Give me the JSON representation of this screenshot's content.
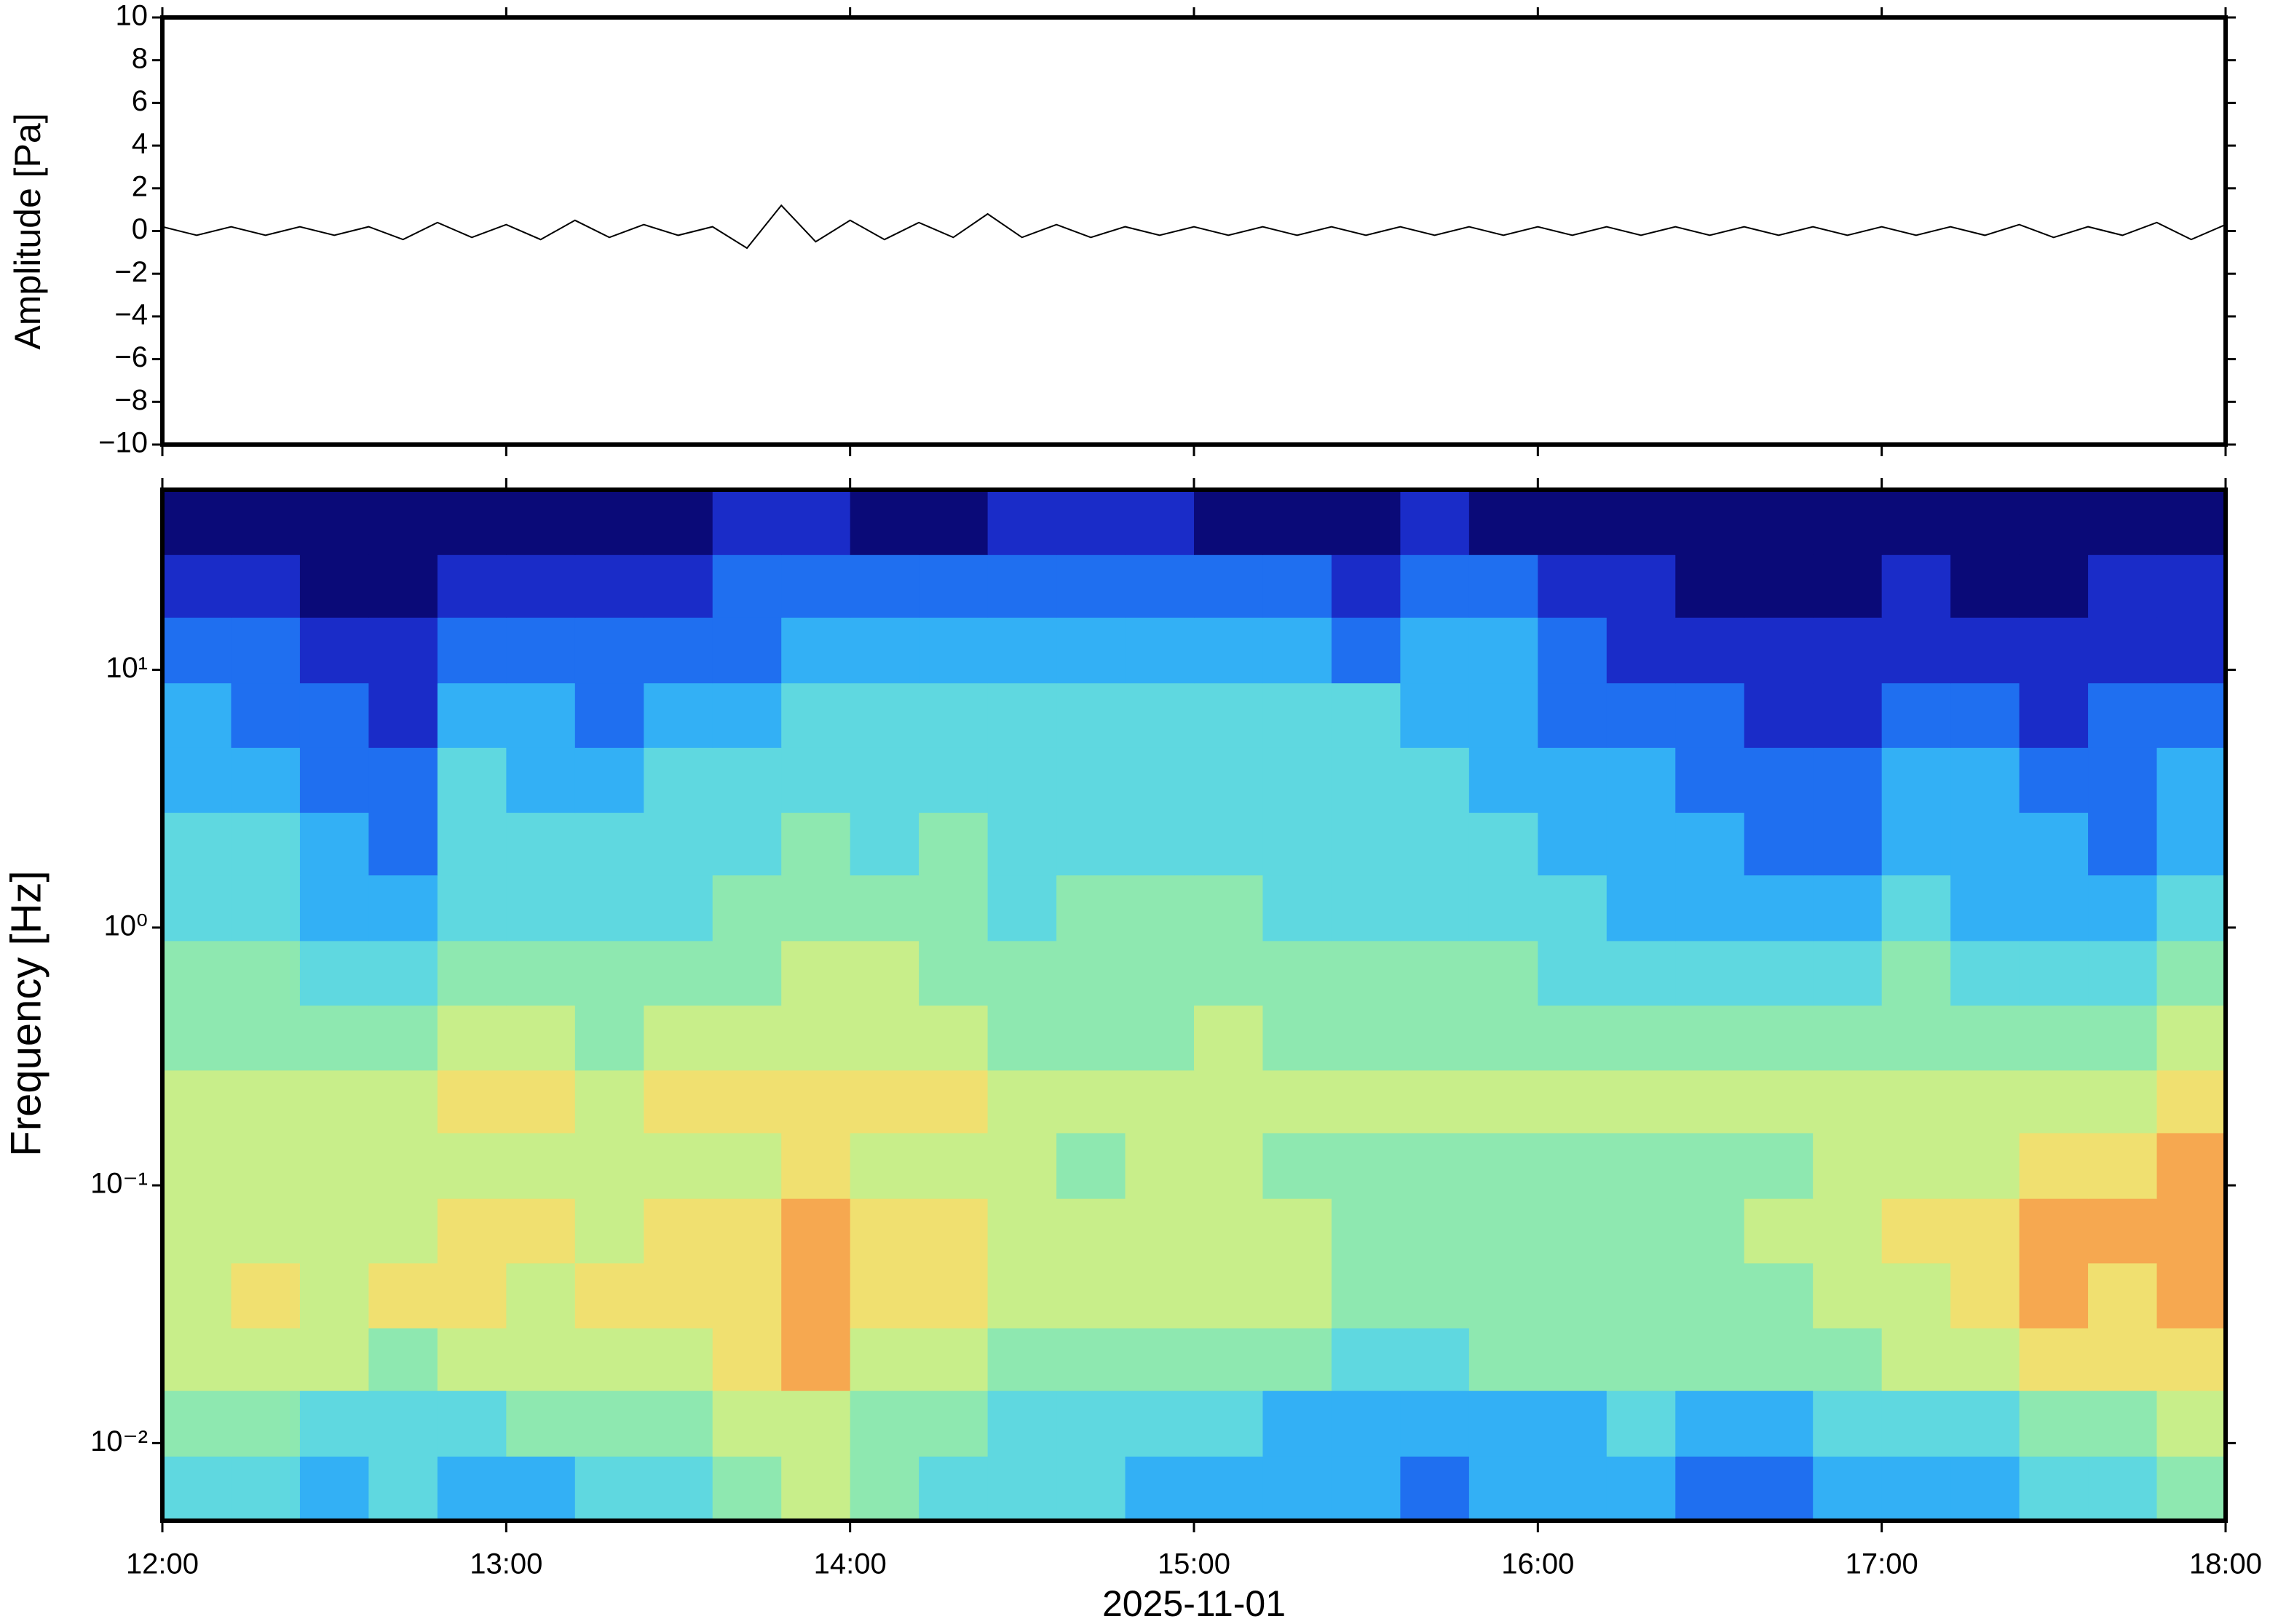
{
  "chart_data": [
    {
      "type": "line",
      "ylabel": "Amplitude [Pa]",
      "color": "#000000",
      "xlim": [
        12,
        18
      ],
      "ylim": [
        -10,
        10
      ],
      "yticks": [
        {
          "value": -10,
          "label": "−10"
        },
        {
          "value": -8,
          "label": "−8"
        },
        {
          "value": -6,
          "label": "−6"
        },
        {
          "value": -4,
          "label": "−4"
        },
        {
          "value": -2,
          "label": "−2"
        },
        0,
        2,
        4,
        6,
        8,
        10
      ],
      "x": [
        12.0,
        12.1,
        12.2,
        12.3,
        12.4,
        12.5,
        12.6,
        12.7,
        12.8,
        12.9,
        13.0,
        13.1,
        13.2,
        13.3,
        13.4,
        13.5,
        13.6,
        13.7,
        13.8,
        13.9,
        14.0,
        14.1,
        14.2,
        14.3,
        14.4,
        14.5,
        14.6,
        14.7,
        14.8,
        14.9,
        15.0,
        15.1,
        15.2,
        15.3,
        15.4,
        15.5,
        15.6,
        15.7,
        15.8,
        15.9,
        16.0,
        16.1,
        16.2,
        16.3,
        16.4,
        16.5,
        16.6,
        16.7,
        16.8,
        16.9,
        17.0,
        17.1,
        17.2,
        17.3,
        17.4,
        17.5,
        17.6,
        17.7,
        17.8,
        17.9,
        18.0
      ],
      "values": [
        0.2,
        -0.2,
        0.2,
        -0.2,
        0.2,
        -0.2,
        0.2,
        -0.4,
        0.4,
        -0.3,
        0.3,
        -0.4,
        0.5,
        -0.3,
        0.3,
        -0.2,
        0.2,
        -0.8,
        1.2,
        -0.5,
        0.5,
        -0.4,
        0.4,
        -0.3,
        0.8,
        -0.3,
        0.3,
        -0.3,
        0.2,
        -0.2,
        0.2,
        -0.2,
        0.2,
        -0.2,
        0.2,
        -0.2,
        0.2,
        -0.2,
        0.2,
        -0.2,
        0.2,
        -0.2,
        0.2,
        -0.2,
        0.2,
        -0.2,
        0.2,
        -0.2,
        0.2,
        -0.2,
        0.2,
        -0.2,
        0.2,
        -0.2,
        0.3,
        -0.3,
        0.2,
        -0.2,
        0.4,
        -0.4,
        0.3
      ]
    },
    {
      "type": "heatmap",
      "ylabel": "Frequency [Hz]",
      "xlabel": "2025-11-01",
      "log_y": true,
      "xlim": [
        12,
        18
      ],
      "ylim": [
        0.005,
        50
      ],
      "xticks": [
        {
          "value": 12,
          "label": "12:00"
        },
        {
          "value": 13,
          "label": "13:00"
        },
        {
          "value": 14,
          "label": "14:00"
        },
        {
          "value": 15,
          "label": "15:00"
        },
        {
          "value": 16,
          "label": "16:00"
        },
        {
          "value": 17,
          "label": "17:00"
        },
        {
          "value": 18,
          "label": "18:00"
        }
      ],
      "yticks": [
        {
          "value": 0.01,
          "label": "10⁻²"
        },
        {
          "value": 0.1,
          "label": "10⁻¹"
        },
        {
          "value": 1,
          "label": "10⁰"
        },
        {
          "value": 10,
          "label": "10¹"
        }
      ],
      "colormap": [
        "#0a0a78",
        "#1a2cc8",
        "#1f6ff0",
        "#33b0f5",
        "#5fd8e0",
        "#8ee8b0",
        "#c8ee8a",
        "#f0e070",
        "#f6a850",
        "#f06030"
      ],
      "x": [
        12.0,
        12.2,
        12.4,
        12.6,
        12.8,
        13.0,
        13.2,
        13.4,
        13.6,
        13.8,
        14.0,
        14.2,
        14.4,
        14.6,
        14.8,
        15.0,
        15.2,
        15.4,
        15.6,
        15.8,
        16.0,
        16.2,
        16.4,
        16.6,
        16.8,
        17.0,
        17.2,
        17.4,
        17.6,
        17.8
      ],
      "y": [
        0.005,
        0.0089,
        0.016,
        0.028,
        0.05,
        0.089,
        0.16,
        0.28,
        0.5,
        0.89,
        1.6,
        2.8,
        5,
        8.9,
        16,
        28
      ],
      "z": [
        [
          4,
          4,
          3,
          4,
          3,
          3,
          4,
          4,
          5,
          6,
          5,
          4,
          4,
          4,
          3,
          3,
          3,
          3,
          2,
          3,
          3,
          3,
          2,
          2,
          3,
          3,
          3,
          4,
          4,
          5
        ],
        [
          5,
          5,
          4,
          4,
          4,
          5,
          5,
          5,
          6,
          6,
          5,
          5,
          4,
          4,
          4,
          4,
          3,
          3,
          3,
          3,
          3,
          4,
          3,
          3,
          4,
          4,
          4,
          5,
          5,
          6
        ],
        [
          6,
          6,
          6,
          5,
          6,
          6,
          6,
          6,
          7,
          8,
          6,
          6,
          5,
          5,
          5,
          5,
          5,
          4,
          4,
          5,
          5,
          5,
          5,
          5,
          5,
          6,
          6,
          7,
          7,
          7
        ],
        [
          6,
          7,
          6,
          7,
          7,
          6,
          7,
          7,
          7,
          8,
          7,
          7,
          6,
          6,
          6,
          6,
          6,
          5,
          5,
          5,
          5,
          5,
          5,
          5,
          6,
          6,
          7,
          8,
          7,
          8
        ],
        [
          6,
          6,
          6,
          6,
          7,
          7,
          6,
          7,
          7,
          8,
          7,
          7,
          6,
          6,
          6,
          6,
          6,
          5,
          5,
          5,
          5,
          5,
          5,
          6,
          6,
          7,
          7,
          8,
          8,
          8
        ],
        [
          6,
          6,
          6,
          6,
          6,
          6,
          6,
          6,
          6,
          7,
          6,
          6,
          6,
          5,
          6,
          6,
          5,
          5,
          5,
          5,
          5,
          5,
          5,
          5,
          6,
          6,
          6,
          7,
          7,
          8
        ],
        [
          6,
          6,
          6,
          6,
          7,
          7,
          6,
          7,
          7,
          7,
          7,
          7,
          6,
          6,
          6,
          6,
          6,
          6,
          6,
          6,
          6,
          6,
          6,
          6,
          6,
          6,
          6,
          6,
          6,
          7
        ],
        [
          5,
          5,
          5,
          5,
          6,
          6,
          5,
          6,
          6,
          6,
          6,
          6,
          5,
          5,
          5,
          6,
          5,
          5,
          5,
          5,
          5,
          5,
          5,
          5,
          5,
          5,
          5,
          5,
          5,
          6
        ],
        [
          5,
          5,
          4,
          4,
          5,
          5,
          5,
          5,
          5,
          6,
          6,
          5,
          5,
          5,
          5,
          5,
          5,
          5,
          5,
          5,
          4,
          4,
          4,
          4,
          4,
          5,
          4,
          4,
          4,
          5
        ],
        [
          4,
          4,
          3,
          3,
          4,
          4,
          4,
          4,
          5,
          5,
          5,
          5,
          4,
          5,
          5,
          5,
          4,
          4,
          4,
          4,
          4,
          3,
          3,
          3,
          3,
          4,
          3,
          3,
          3,
          4
        ],
        [
          4,
          4,
          3,
          2,
          4,
          4,
          4,
          4,
          4,
          5,
          4,
          5,
          4,
          4,
          4,
          4,
          4,
          4,
          4,
          4,
          3,
          3,
          3,
          2,
          2,
          3,
          3,
          3,
          2,
          3
        ],
        [
          3,
          3,
          2,
          2,
          4,
          3,
          3,
          4,
          4,
          4,
          4,
          4,
          4,
          4,
          4,
          4,
          4,
          4,
          4,
          3,
          3,
          3,
          2,
          2,
          2,
          3,
          3,
          2,
          2,
          3
        ],
        [
          3,
          2,
          2,
          1,
          3,
          3,
          2,
          3,
          3,
          4,
          4,
          4,
          4,
          4,
          4,
          4,
          4,
          4,
          3,
          3,
          2,
          2,
          2,
          1,
          1,
          2,
          2,
          1,
          2,
          2
        ],
        [
          2,
          2,
          1,
          1,
          2,
          2,
          2,
          2,
          2,
          3,
          3,
          3,
          3,
          3,
          3,
          3,
          3,
          2,
          3,
          3,
          2,
          1,
          1,
          1,
          1,
          1,
          1,
          1,
          1,
          1
        ],
        [
          1,
          1,
          0,
          0,
          1,
          1,
          1,
          1,
          2,
          2,
          2,
          2,
          2,
          2,
          2,
          2,
          2,
          1,
          2,
          2,
          1,
          1,
          0,
          0,
          0,
          1,
          0,
          0,
          1,
          1
        ],
        [
          0,
          0,
          0,
          0,
          0,
          0,
          0,
          0,
          1,
          1,
          0,
          0,
          1,
          1,
          1,
          0,
          0,
          0,
          1,
          0,
          0,
          0,
          0,
          0,
          0,
          0,
          0,
          0,
          0,
          0
        ]
      ]
    }
  ]
}
